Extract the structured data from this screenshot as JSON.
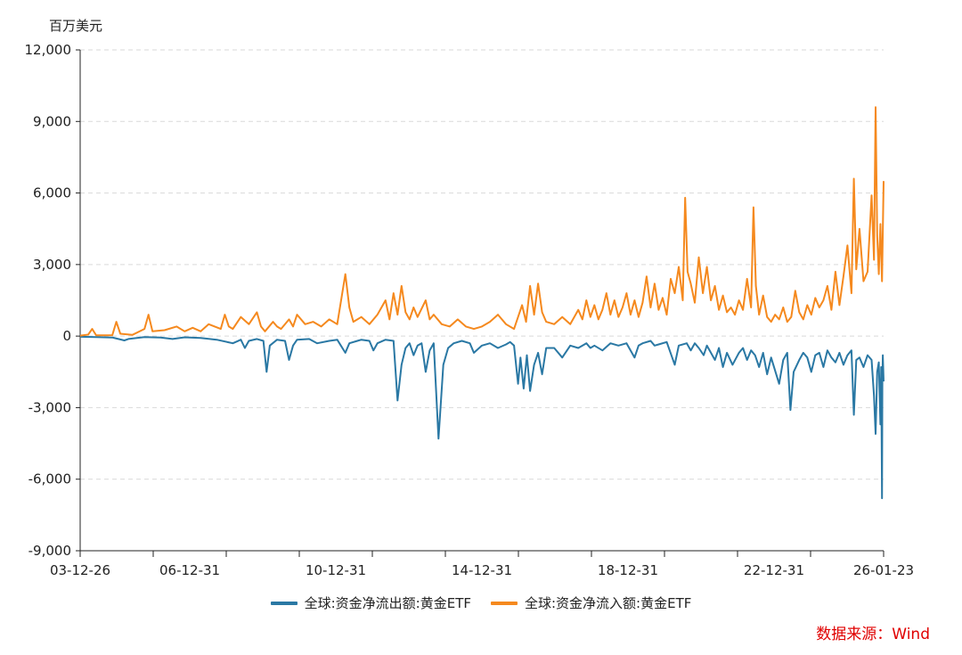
{
  "chart_data": {
    "type": "line",
    "title": "",
    "ylabel": "百万美元",
    "xlabel": "",
    "ylim": [
      -9000,
      12000
    ],
    "yticks": [
      "12,000",
      "9,000",
      "6,000",
      "3,000",
      "0",
      "-3,000",
      "-6,000",
      "-9,000"
    ],
    "ytick_values": [
      12000,
      9000,
      6000,
      3000,
      0,
      -3000,
      -6000,
      -9000
    ],
    "xtick_labels": [
      "03-12-26",
      "06-12-31",
      "10-12-31",
      "14-12-31",
      "18-12-31",
      "22-12-31",
      "26-01-23"
    ],
    "xtick_fractions": [
      0.0,
      0.1364,
      0.3182,
      0.5,
      0.6818,
      0.8636,
      1.0
    ],
    "grid": true,
    "legend_position": "bottom",
    "source_note": "数据来源：Wind",
    "series": [
      {
        "name": "全球:资金净流出额:黄金ETF",
        "color": "#2a78a4",
        "points": [
          [
            0.0,
            -30
          ],
          [
            0.02,
            -40
          ],
          [
            0.04,
            -60
          ],
          [
            0.055,
            -180
          ],
          [
            0.06,
            -120
          ],
          [
            0.08,
            -40
          ],
          [
            0.1,
            -60
          ],
          [
            0.115,
            -120
          ],
          [
            0.13,
            -50
          ],
          [
            0.15,
            -80
          ],
          [
            0.17,
            -150
          ],
          [
            0.19,
            -300
          ],
          [
            0.2,
            -150
          ],
          [
            0.205,
            -500
          ],
          [
            0.21,
            -200
          ],
          [
            0.22,
            -120
          ],
          [
            0.228,
            -200
          ],
          [
            0.232,
            -1500
          ],
          [
            0.236,
            -400
          ],
          [
            0.245,
            -150
          ],
          [
            0.255,
            -200
          ],
          [
            0.26,
            -1000
          ],
          [
            0.265,
            -400
          ],
          [
            0.27,
            -150
          ],
          [
            0.285,
            -120
          ],
          [
            0.295,
            -300
          ],
          [
            0.31,
            -200
          ],
          [
            0.32,
            -150
          ],
          [
            0.33,
            -700
          ],
          [
            0.335,
            -300
          ],
          [
            0.345,
            -200
          ],
          [
            0.35,
            -150
          ],
          [
            0.36,
            -200
          ],
          [
            0.365,
            -600
          ],
          [
            0.37,
            -300
          ],
          [
            0.38,
            -150
          ],
          [
            0.39,
            -200
          ],
          [
            0.395,
            -2700
          ],
          [
            0.4,
            -1200
          ],
          [
            0.405,
            -500
          ],
          [
            0.41,
            -300
          ],
          [
            0.415,
            -800
          ],
          [
            0.42,
            -400
          ],
          [
            0.425,
            -300
          ],
          [
            0.43,
            -1500
          ],
          [
            0.435,
            -600
          ],
          [
            0.44,
            -300
          ],
          [
            0.446,
            -4300
          ],
          [
            0.452,
            -1200
          ],
          [
            0.458,
            -500
          ],
          [
            0.465,
            -300
          ],
          [
            0.475,
            -200
          ],
          [
            0.485,
            -300
          ],
          [
            0.49,
            -700
          ],
          [
            0.5,
            -400
          ],
          [
            0.51,
            -300
          ],
          [
            0.52,
            -500
          ],
          [
            0.53,
            -350
          ],
          [
            0.535,
            -250
          ],
          [
            0.54,
            -400
          ],
          [
            0.545,
            -2000
          ],
          [
            0.548,
            -900
          ],
          [
            0.552,
            -2200
          ],
          [
            0.556,
            -800
          ],
          [
            0.56,
            -2300
          ],
          [
            0.565,
            -1200
          ],
          [
            0.57,
            -700
          ],
          [
            0.575,
            -1600
          ],
          [
            0.58,
            -500
          ],
          [
            0.59,
            -500
          ],
          [
            0.6,
            -900
          ],
          [
            0.61,
            -400
          ],
          [
            0.62,
            -500
          ],
          [
            0.63,
            -300
          ],
          [
            0.635,
            -500
          ],
          [
            0.64,
            -400
          ],
          [
            0.65,
            -600
          ],
          [
            0.66,
            -300
          ],
          [
            0.67,
            -400
          ],
          [
            0.68,
            -300
          ],
          [
            0.69,
            -900
          ],
          [
            0.695,
            -400
          ],
          [
            0.7,
            -300
          ],
          [
            0.71,
            -200
          ],
          [
            0.715,
            -400
          ],
          [
            0.72,
            -350
          ],
          [
            0.73,
            -250
          ],
          [
            0.74,
            -1200
          ],
          [
            0.745,
            -400
          ],
          [
            0.755,
            -300
          ],
          [
            0.76,
            -600
          ],
          [
            0.765,
            -300
          ],
          [
            0.77,
            -500
          ],
          [
            0.776,
            -800
          ],
          [
            0.78,
            -400
          ],
          [
            0.79,
            -1000
          ],
          [
            0.795,
            -500
          ],
          [
            0.8,
            -1300
          ],
          [
            0.805,
            -700
          ],
          [
            0.812,
            -1200
          ],
          [
            0.82,
            -700
          ],
          [
            0.825,
            -500
          ],
          [
            0.83,
            -1000
          ],
          [
            0.835,
            -600
          ],
          [
            0.84,
            -800
          ],
          [
            0.845,
            -1300
          ],
          [
            0.85,
            -700
          ],
          [
            0.855,
            -1600
          ],
          [
            0.86,
            -900
          ],
          [
            0.87,
            -2000
          ],
          [
            0.875,
            -1000
          ],
          [
            0.88,
            -700
          ],
          [
            0.884,
            -3100
          ],
          [
            0.888,
            -1500
          ],
          [
            0.895,
            -1000
          ],
          [
            0.9,
            -700
          ],
          [
            0.905,
            -900
          ],
          [
            0.91,
            -1500
          ],
          [
            0.915,
            -800
          ],
          [
            0.92,
            -700
          ],
          [
            0.925,
            -1300
          ],
          [
            0.93,
            -600
          ],
          [
            0.935,
            -900
          ],
          [
            0.94,
            -1100
          ],
          [
            0.945,
            -700
          ],
          [
            0.95,
            -1200
          ],
          [
            0.955,
            -800
          ],
          [
            0.96,
            -600
          ],
          [
            0.963,
            -3300
          ],
          [
            0.966,
            -1000
          ],
          [
            0.97,
            -900
          ],
          [
            0.975,
            -1300
          ],
          [
            0.98,
            -800
          ],
          [
            0.985,
            -1000
          ],
          [
            0.988,
            -2500
          ],
          [
            0.99,
            -4100
          ],
          [
            0.992,
            -1500
          ],
          [
            0.994,
            -1100
          ],
          [
            0.996,
            -3700
          ],
          [
            0.997,
            -1300
          ],
          [
            0.998,
            -6800
          ],
          [
            0.9985,
            -1800
          ],
          [
            0.999,
            -800
          ],
          [
            1.0,
            -1900
          ]
        ]
      },
      {
        "name": "全球:资金净流入额:黄金ETF",
        "color": "#f5891e",
        "points": [
          [
            0.0,
            20
          ],
          [
            0.01,
            60
          ],
          [
            0.015,
            300
          ],
          [
            0.02,
            30
          ],
          [
            0.04,
            40
          ],
          [
            0.045,
            600
          ],
          [
            0.05,
            100
          ],
          [
            0.065,
            50
          ],
          [
            0.08,
            300
          ],
          [
            0.085,
            900
          ],
          [
            0.09,
            200
          ],
          [
            0.105,
            250
          ],
          [
            0.12,
            400
          ],
          [
            0.13,
            200
          ],
          [
            0.14,
            350
          ],
          [
            0.15,
            200
          ],
          [
            0.16,
            500
          ],
          [
            0.175,
            300
          ],
          [
            0.18,
            900
          ],
          [
            0.185,
            400
          ],
          [
            0.19,
            300
          ],
          [
            0.2,
            800
          ],
          [
            0.21,
            500
          ],
          [
            0.22,
            1000
          ],
          [
            0.225,
            400
          ],
          [
            0.23,
            200
          ],
          [
            0.24,
            600
          ],
          [
            0.245,
            400
          ],
          [
            0.25,
            300
          ],
          [
            0.26,
            700
          ],
          [
            0.265,
            400
          ],
          [
            0.27,
            900
          ],
          [
            0.28,
            500
          ],
          [
            0.29,
            600
          ],
          [
            0.3,
            400
          ],
          [
            0.31,
            700
          ],
          [
            0.32,
            500
          ],
          [
            0.33,
            2600
          ],
          [
            0.335,
            1200
          ],
          [
            0.34,
            600
          ],
          [
            0.35,
            800
          ],
          [
            0.36,
            500
          ],
          [
            0.37,
            900
          ],
          [
            0.38,
            1500
          ],
          [
            0.385,
            700
          ],
          [
            0.39,
            1800
          ],
          [
            0.395,
            900
          ],
          [
            0.4,
            2100
          ],
          [
            0.405,
            1000
          ],
          [
            0.41,
            700
          ],
          [
            0.415,
            1200
          ],
          [
            0.42,
            800
          ],
          [
            0.43,
            1500
          ],
          [
            0.435,
            700
          ],
          [
            0.44,
            900
          ],
          [
            0.45,
            500
          ],
          [
            0.46,
            400
          ],
          [
            0.47,
            700
          ],
          [
            0.48,
            400
          ],
          [
            0.49,
            300
          ],
          [
            0.5,
            400
          ],
          [
            0.51,
            600
          ],
          [
            0.52,
            900
          ],
          [
            0.53,
            500
          ],
          [
            0.54,
            300
          ],
          [
            0.55,
            1300
          ],
          [
            0.555,
            600
          ],
          [
            0.56,
            2100
          ],
          [
            0.565,
            900
          ],
          [
            0.57,
            2200
          ],
          [
            0.575,
            1000
          ],
          [
            0.58,
            600
          ],
          [
            0.59,
            500
          ],
          [
            0.6,
            800
          ],
          [
            0.61,
            500
          ],
          [
            0.62,
            1100
          ],
          [
            0.625,
            700
          ],
          [
            0.63,
            1500
          ],
          [
            0.635,
            800
          ],
          [
            0.64,
            1300
          ],
          [
            0.645,
            700
          ],
          [
            0.65,
            1100
          ],
          [
            0.655,
            1800
          ],
          [
            0.66,
            900
          ],
          [
            0.665,
            1500
          ],
          [
            0.67,
            800
          ],
          [
            0.675,
            1200
          ],
          [
            0.68,
            1800
          ],
          [
            0.685,
            900
          ],
          [
            0.69,
            1500
          ],
          [
            0.695,
            800
          ],
          [
            0.7,
            1400
          ],
          [
            0.705,
            2500
          ],
          [
            0.71,
            1200
          ],
          [
            0.715,
            2200
          ],
          [
            0.72,
            1100
          ],
          [
            0.725,
            1600
          ],
          [
            0.73,
            900
          ],
          [
            0.735,
            2400
          ],
          [
            0.74,
            1800
          ],
          [
            0.745,
            2900
          ],
          [
            0.75,
            1500
          ],
          [
            0.753,
            5800
          ],
          [
            0.756,
            2700
          ],
          [
            0.76,
            2200
          ],
          [
            0.765,
            1400
          ],
          [
            0.77,
            3300
          ],
          [
            0.775,
            1800
          ],
          [
            0.78,
            2900
          ],
          [
            0.785,
            1500
          ],
          [
            0.79,
            2100
          ],
          [
            0.795,
            1100
          ],
          [
            0.8,
            1700
          ],
          [
            0.805,
            1000
          ],
          [
            0.81,
            1200
          ],
          [
            0.815,
            900
          ],
          [
            0.82,
            1500
          ],
          [
            0.825,
            1100
          ],
          [
            0.83,
            2400
          ],
          [
            0.835,
            1200
          ],
          [
            0.838,
            5400
          ],
          [
            0.841,
            2100
          ],
          [
            0.845,
            900
          ],
          [
            0.85,
            1700
          ],
          [
            0.855,
            800
          ],
          [
            0.86,
            600
          ],
          [
            0.865,
            900
          ],
          [
            0.87,
            700
          ],
          [
            0.875,
            1200
          ],
          [
            0.88,
            600
          ],
          [
            0.885,
            800
          ],
          [
            0.89,
            1900
          ],
          [
            0.895,
            1000
          ],
          [
            0.9,
            700
          ],
          [
            0.905,
            1300
          ],
          [
            0.91,
            900
          ],
          [
            0.915,
            1600
          ],
          [
            0.92,
            1200
          ],
          [
            0.925,
            1500
          ],
          [
            0.93,
            2100
          ],
          [
            0.935,
            1100
          ],
          [
            0.94,
            2700
          ],
          [
            0.945,
            1300
          ],
          [
            0.95,
            2500
          ],
          [
            0.955,
            3800
          ],
          [
            0.96,
            1800
          ],
          [
            0.963,
            6600
          ],
          [
            0.966,
            2800
          ],
          [
            0.97,
            4500
          ],
          [
            0.975,
            2300
          ],
          [
            0.98,
            2700
          ],
          [
            0.985,
            5900
          ],
          [
            0.988,
            3200
          ],
          [
            0.99,
            9600
          ],
          [
            0.992,
            4200
          ],
          [
            0.994,
            2600
          ],
          [
            0.996,
            4700
          ],
          [
            0.998,
            2300
          ],
          [
            1.0,
            6500
          ]
        ]
      }
    ]
  }
}
